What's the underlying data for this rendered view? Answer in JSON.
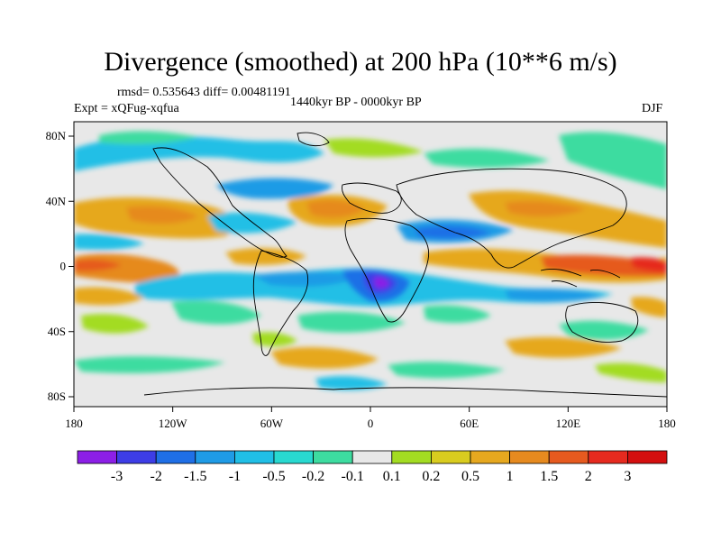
{
  "title": "Divergence (smoothed) at 200 hPa (10**6 m/s)",
  "stats": "rmsd= 0.535643 diff= 0.00481191",
  "period": "1440kyr BP - 0000kyr BP",
  "experiment": "Expt = xQFug-xqfua",
  "season": "DJF",
  "map": {
    "lat_ticks": [
      "80N",
      "40N",
      "0",
      "40S",
      "80S"
    ],
    "lon_ticks": [
      "180",
      "120W",
      "60W",
      "0",
      "60E",
      "120E",
      "180"
    ],
    "lon_range": [
      -180,
      180
    ],
    "lat_range": [
      -90,
      90
    ]
  },
  "colorbar": {
    "labels": [
      "-3",
      "-2",
      "-1.5",
      "-1",
      "-0.5",
      "-0.2",
      "-0.1",
      "0.1",
      "0.2",
      "0.5",
      "1",
      "1.5",
      "2",
      "3"
    ],
    "colors": [
      "#8c1fe6",
      "#3d3de6",
      "#1f6fe6",
      "#1f9be6",
      "#20bfe6",
      "#28d9d0",
      "#3ddca0",
      "#e8e8e8",
      "#a3dc22",
      "#d9cc1f",
      "#e6a81f",
      "#e68a1f",
      "#e65a1f",
      "#e62a1f",
      "#d40f0f"
    ]
  }
}
